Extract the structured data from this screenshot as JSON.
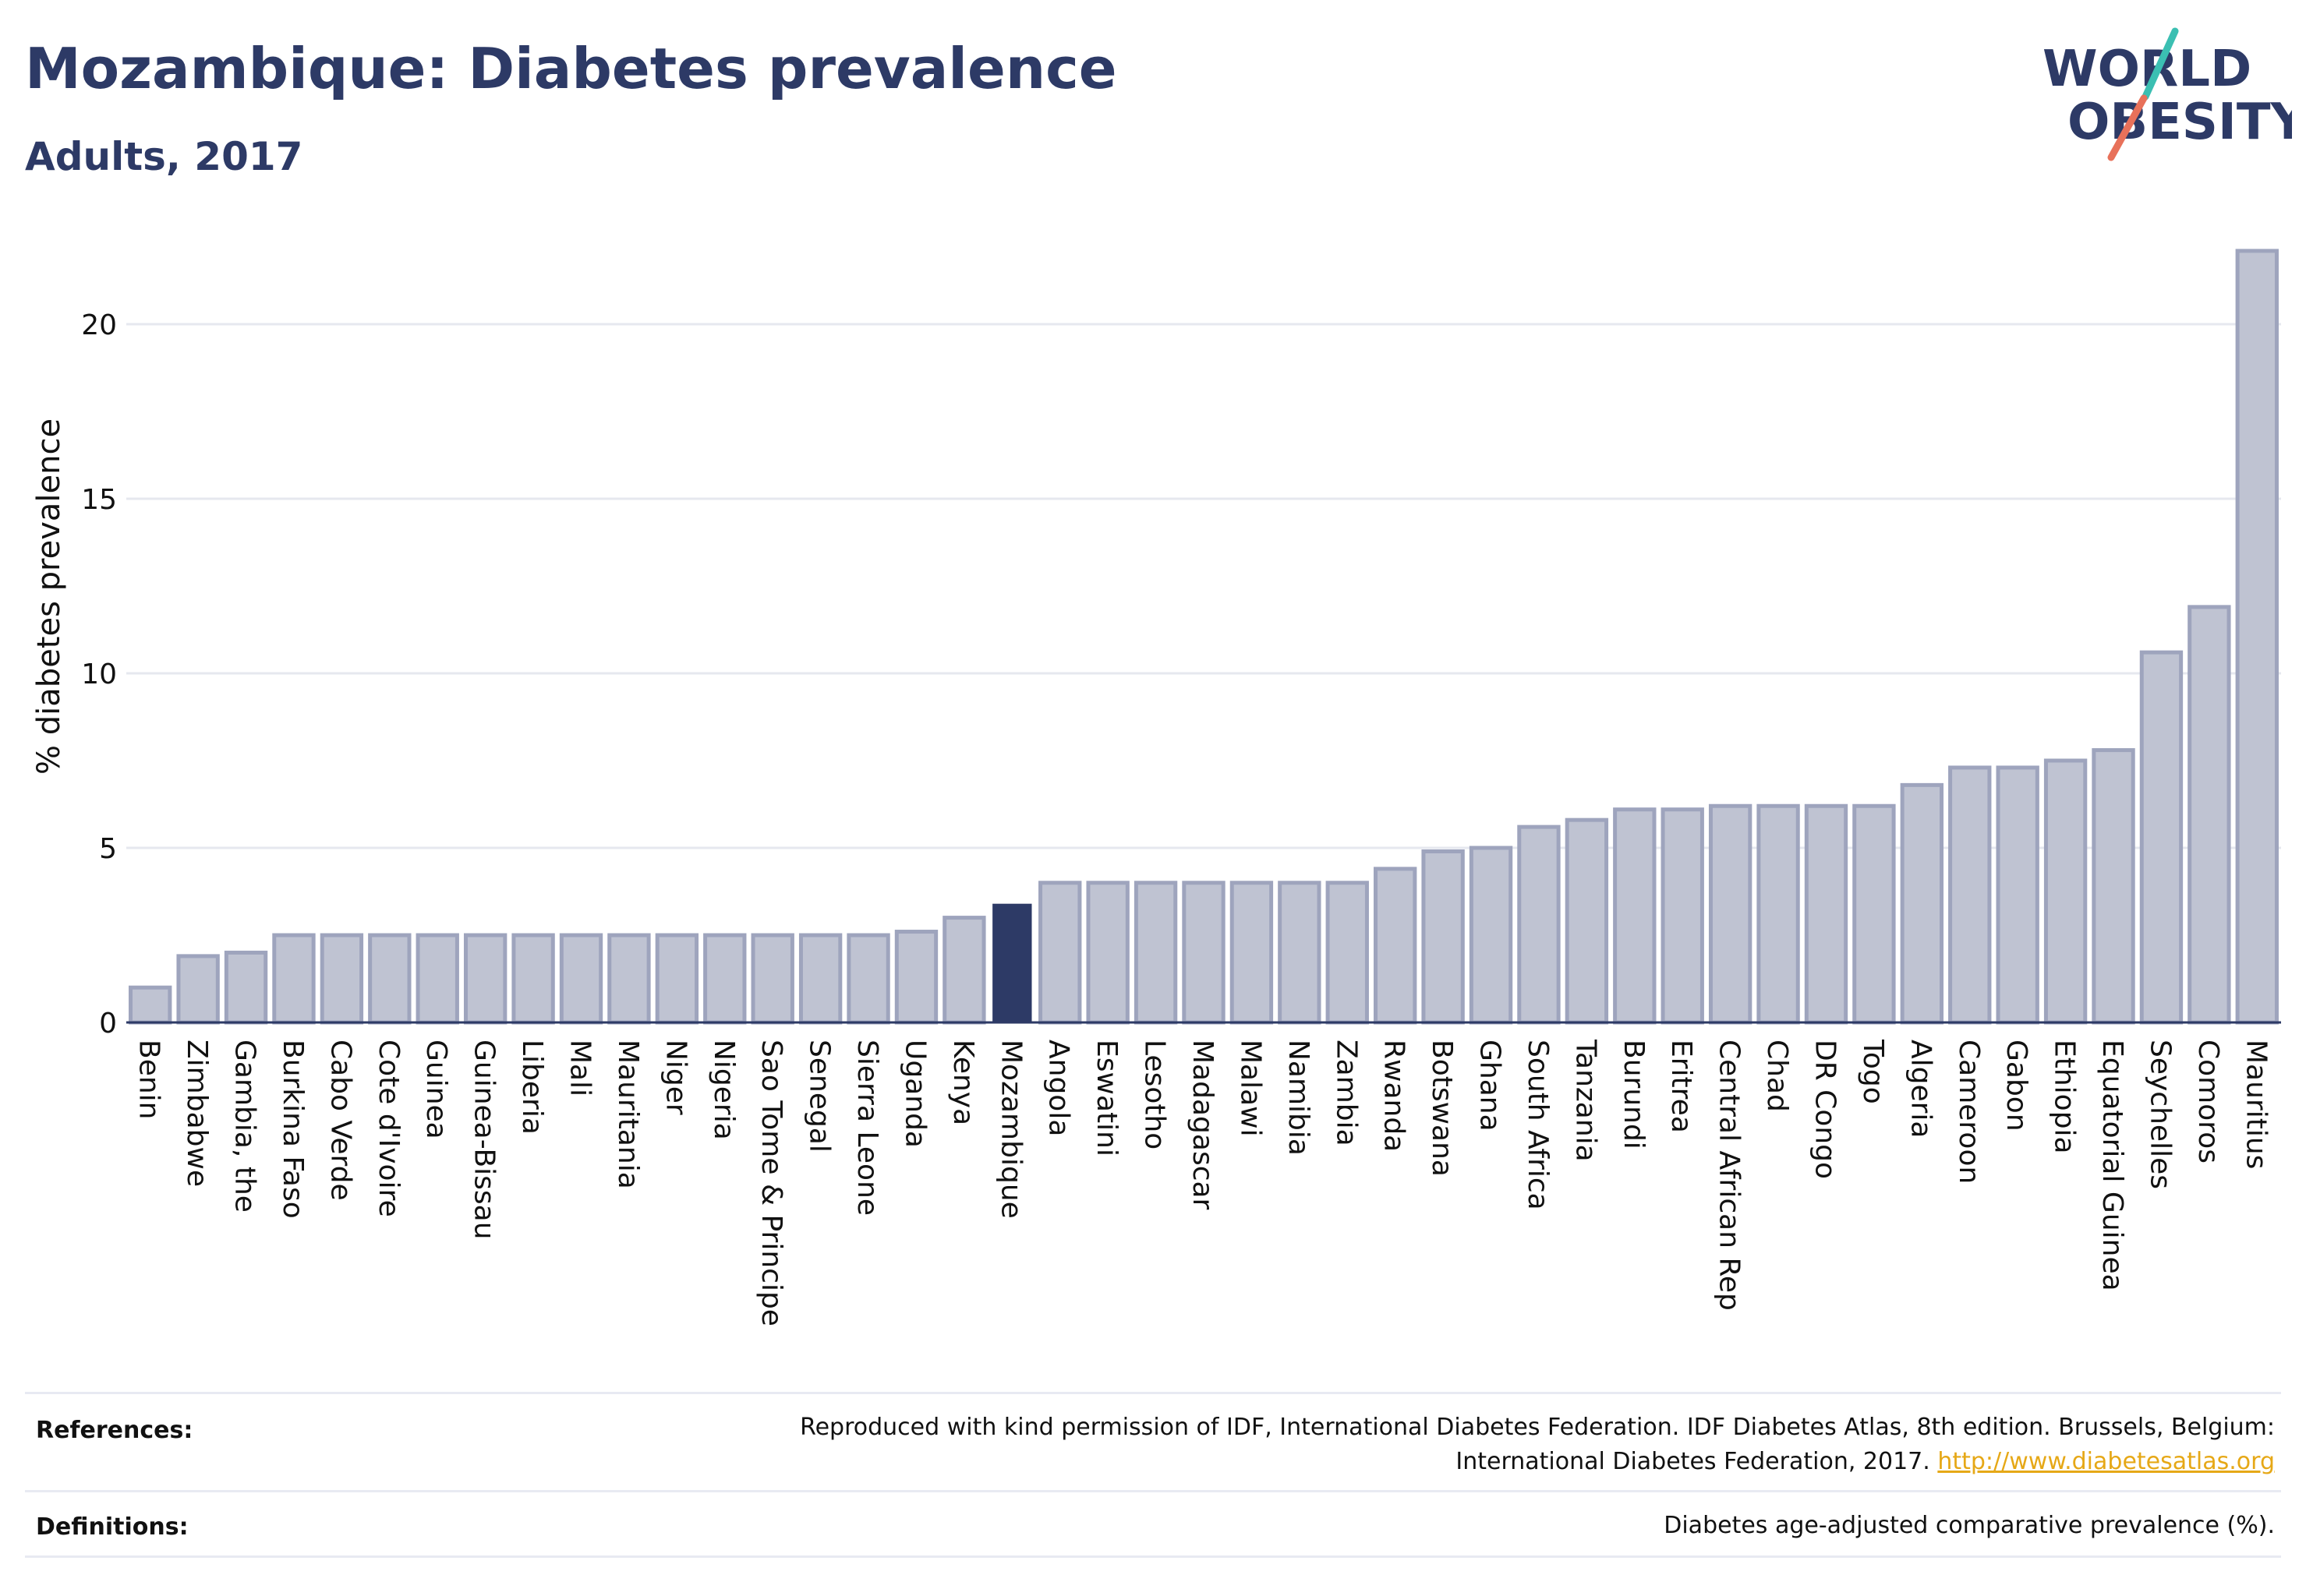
{
  "header": {
    "title": "Mozambique: Diabetes prevalence",
    "subtitle": "Adults, 2017"
  },
  "logo": {
    "line1": "WORLD",
    "line2": "OBESITY",
    "colors": {
      "text": "#2d3a66",
      "slash_top": "#3bbfb2",
      "slash_bottom": "#e8715a"
    }
  },
  "colors": {
    "bar_fill": "#bfc3d2",
    "bar_stroke": "#9ea4bd",
    "highlight": "#2d3a66",
    "grid": "#e6e8ef",
    "axis": "#2d3a66"
  },
  "chart_data": {
    "type": "bar",
    "ylabel": "% diabetes prevalence",
    "xlabel": "",
    "ylim": [
      0,
      22.5
    ],
    "yticks": [
      0,
      5,
      10,
      15,
      20
    ],
    "grid": true,
    "highlight": "Mozambique",
    "categories": [
      "Benin",
      "Zimbabwe",
      "Gambia, the",
      "Burkina Faso",
      "Cabo Verde",
      "Cote d'Ivoire",
      "Guinea",
      "Guinea-Bissau",
      "Liberia",
      "Mali",
      "Mauritania",
      "Niger",
      "Nigeria",
      "Sao Tome & Principe",
      "Senegal",
      "Sierra Leone",
      "Uganda",
      "Kenya",
      "Mozambique",
      "Angola",
      "Eswatini",
      "Lesotho",
      "Madagascar",
      "Malawi",
      "Namibia",
      "Zambia",
      "Rwanda",
      "Botswana",
      "Ghana",
      "South Africa",
      "Tanzania",
      "Burundi",
      "Eritrea",
      "Central African Rep",
      "Chad",
      "DR Congo",
      "Togo",
      "Algeria",
      "Cameroon",
      "Gabon",
      "Ethiopia",
      "Equatorial Guinea",
      "Seychelles",
      "Comoros",
      "Mauritius"
    ],
    "values": [
      1.0,
      1.9,
      2.0,
      2.5,
      2.5,
      2.5,
      2.5,
      2.5,
      2.5,
      2.5,
      2.5,
      2.5,
      2.5,
      2.5,
      2.5,
      2.5,
      2.6,
      3.0,
      3.4,
      4.0,
      4.0,
      4.0,
      4.0,
      4.0,
      4.0,
      4.0,
      4.4,
      4.9,
      5.0,
      5.6,
      5.8,
      6.1,
      6.1,
      6.2,
      6.2,
      6.2,
      6.2,
      6.8,
      7.3,
      7.3,
      7.5,
      7.8,
      10.6,
      11.9,
      22.1
    ]
  },
  "footer": {
    "references_label": "References:",
    "references_line1": "Reproduced with kind permission of IDF, International Diabetes Federation. IDF Diabetes Atlas, 8th edition. Brussels, Belgium:",
    "references_line2": "International Diabetes Federation, 2017.",
    "references_link": "http://www.diabetesatlas.org",
    "definitions_label": "Definitions:",
    "definitions_text": "Diabetes age-adjusted comparative prevalence (%)."
  }
}
